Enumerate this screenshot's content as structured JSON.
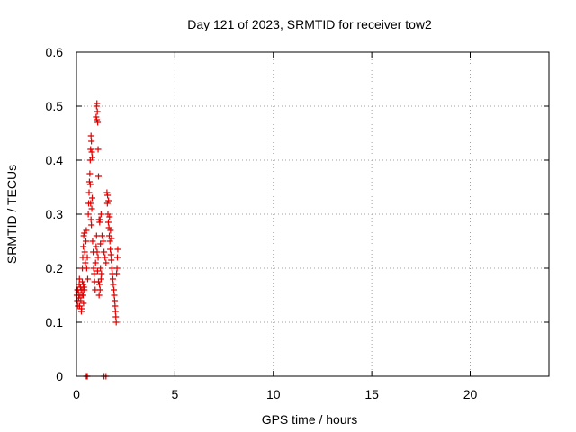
{
  "chart_data": {
    "type": "scatter",
    "title": "Day 121 of 2023, SRMTID for receiver tow2",
    "xlabel": "GPS time / hours",
    "ylabel": "SRMTID / TECUs",
    "xlim": [
      0,
      24
    ],
    "ylim": [
      0,
      0.6
    ],
    "xticks": [
      0,
      5,
      10,
      15,
      20
    ],
    "xtick_labels": [
      "0",
      "5",
      "10",
      "15",
      "20"
    ],
    "yticks": [
      0,
      0.1,
      0.2,
      0.3,
      0.4,
      0.5,
      0.6
    ],
    "ytick_labels": [
      "0",
      "0.1",
      "0.2",
      "0.3",
      "0.4",
      "0.5",
      "0.6"
    ],
    "grid": true,
    "marker": "+",
    "color": "#e00000",
    "series": [
      {
        "name": "SRMTID",
        "points": [
          [
            0.02,
            0.15
          ],
          [
            0.04,
            0.14
          ],
          [
            0.06,
            0.16
          ],
          [
            0.08,
            0.13
          ],
          [
            0.1,
            0.155
          ],
          [
            0.12,
            0.145
          ],
          [
            0.14,
            0.17
          ],
          [
            0.16,
            0.13
          ],
          [
            0.18,
            0.15
          ],
          [
            0.2,
            0.165
          ],
          [
            0.22,
            0.14
          ],
          [
            0.24,
            0.16
          ],
          [
            0.26,
            0.125
          ],
          [
            0.28,
            0.15
          ],
          [
            0.3,
            0.175
          ],
          [
            0.32,
            0.16
          ],
          [
            0.34,
            0.15
          ],
          [
            0.36,
            0.135
          ],
          [
            0.38,
            0.165
          ],
          [
            0.4,
            0.16
          ],
          [
            0.15,
            0.18
          ],
          [
            0.25,
            0.12
          ],
          [
            0.35,
            0.17
          ],
          [
            0.05,
            0.16
          ],
          [
            0.3,
            0.2
          ],
          [
            0.32,
            0.22
          ],
          [
            0.35,
            0.24
          ],
          [
            0.37,
            0.26
          ],
          [
            0.4,
            0.265
          ],
          [
            0.42,
            0.23
          ],
          [
            0.45,
            0.21
          ],
          [
            0.48,
            0.25
          ],
          [
            0.5,
            0.27
          ],
          [
            0.52,
            0.2
          ],
          [
            0.55,
            0.22
          ],
          [
            0.57,
            0.18
          ],
          [
            0.6,
            0.3
          ],
          [
            0.62,
            0.32
          ],
          [
            0.64,
            0.34
          ],
          [
            0.66,
            0.36
          ],
          [
            0.68,
            0.375
          ],
          [
            0.7,
            0.355
          ],
          [
            0.72,
            0.32
          ],
          [
            0.74,
            0.29
          ],
          [
            0.76,
            0.28
          ],
          [
            0.78,
            0.31
          ],
          [
            0.8,
            0.33
          ],
          [
            0.82,
            0.25
          ],
          [
            0.7,
            0.4
          ],
          [
            0.72,
            0.42
          ],
          [
            0.74,
            0.445
          ],
          [
            0.76,
            0.435
          ],
          [
            0.78,
            0.415
          ],
          [
            0.8,
            0.405
          ],
          [
            0.85,
            0.23
          ],
          [
            0.87,
            0.2
          ],
          [
            0.9,
            0.19
          ],
          [
            0.92,
            0.175
          ],
          [
            0.95,
            0.16
          ],
          [
            0.97,
            0.21
          ],
          [
            1.0,
            0.24
          ],
          [
            1.02,
            0.26
          ],
          [
            1.05,
            0.23
          ],
          [
            1.07,
            0.195
          ],
          [
            1.1,
            0.22
          ],
          [
            1.12,
            0.175
          ],
          [
            1.15,
            0.15
          ],
          [
            1.17,
            0.17
          ],
          [
            1.2,
            0.16
          ],
          [
            1.22,
            0.2
          ],
          [
            1.25,
            0.18
          ],
          [
            1.27,
            0.19
          ],
          [
            1.0,
            0.48
          ],
          [
            1.02,
            0.5
          ],
          [
            1.04,
            0.505
          ],
          [
            1.06,
            0.49
          ],
          [
            1.08,
            0.47
          ],
          [
            1.03,
            0.475
          ],
          [
            1.1,
            0.42
          ],
          [
            1.12,
            0.37
          ],
          [
            1.15,
            0.29
          ],
          [
            1.18,
            0.285
          ],
          [
            1.2,
            0.29
          ],
          [
            1.22,
            0.245
          ],
          [
            1.25,
            0.3
          ],
          [
            1.3,
            0.26
          ],
          [
            1.35,
            0.25
          ],
          [
            1.4,
            0.23
          ],
          [
            1.45,
            0.22
          ],
          [
            1.5,
            0.21
          ],
          [
            1.55,
            0.34
          ],
          [
            1.57,
            0.32
          ],
          [
            1.6,
            0.3
          ],
          [
            1.62,
            0.285
          ],
          [
            1.65,
            0.275
          ],
          [
            1.67,
            0.26
          ],
          [
            1.7,
            0.25
          ],
          [
            1.72,
            0.235
          ],
          [
            1.75,
            0.225
          ],
          [
            1.77,
            0.215
          ],
          [
            1.8,
            0.2
          ],
          [
            1.82,
            0.19
          ],
          [
            1.85,
            0.18
          ],
          [
            1.87,
            0.17
          ],
          [
            1.9,
            0.16
          ],
          [
            1.92,
            0.15
          ],
          [
            1.94,
            0.14
          ],
          [
            1.96,
            0.13
          ],
          [
            1.98,
            0.12
          ],
          [
            2.0,
            0.11
          ],
          [
            2.02,
            0.1
          ],
          [
            2.04,
            0.19
          ],
          [
            2.06,
            0.2
          ],
          [
            2.08,
            0.22
          ],
          [
            2.1,
            0.235
          ],
          [
            1.58,
            0.335
          ],
          [
            1.63,
            0.325
          ],
          [
            1.68,
            0.295
          ],
          [
            1.73,
            0.27
          ],
          [
            1.78,
            0.255
          ],
          [
            0.5,
            0.0
          ],
          [
            0.55,
            0.0
          ],
          [
            1.4,
            0.0
          ],
          [
            1.5,
            0.0
          ]
        ]
      }
    ]
  }
}
